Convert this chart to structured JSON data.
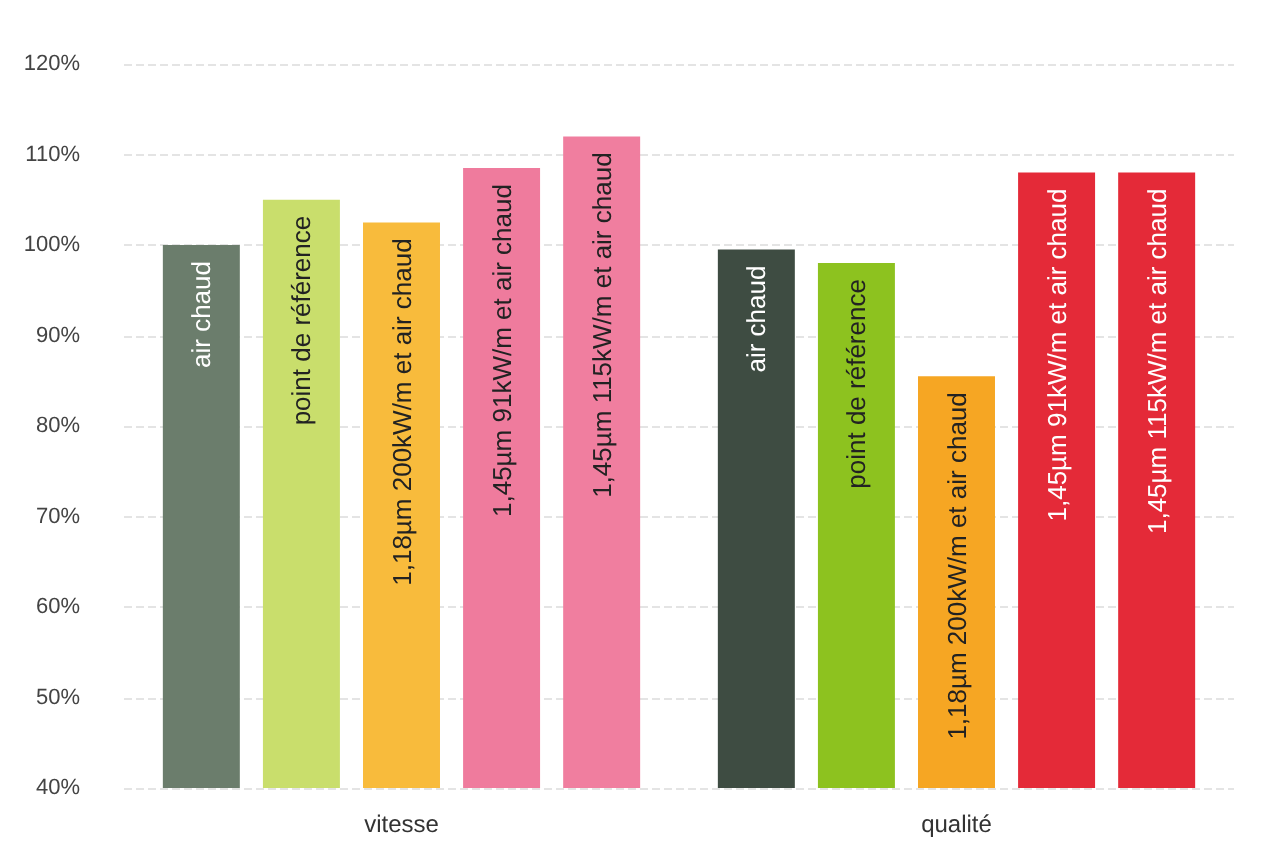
{
  "chart_data": {
    "type": "bar",
    "categories": [
      "vitesse",
      "qualité"
    ],
    "series": [
      {
        "name": "air chaud",
        "colors": [
          "#6b7d6c",
          "#3e4c42"
        ],
        "values": [
          100,
          99.5
        ]
      },
      {
        "name": "point de référence",
        "colors": [
          "#c9de6c",
          "#8dc21f"
        ],
        "values": [
          105,
          98
        ]
      },
      {
        "name": "1,18µm 200kW/m et air chaud",
        "colors": [
          "#f8bb3c",
          "#f6a623"
        ],
        "values": [
          102.5,
          85.5
        ]
      },
      {
        "name": "1,45µm 91kW/m et air chaud",
        "colors": [
          "#ef7b9d",
          "#e42a38"
        ],
        "values": [
          108.5,
          108
        ]
      },
      {
        "name": "1,45µm 115kW/m et air chaud",
        "colors": [
          "#f07e9f",
          "#e42a38"
        ],
        "values": [
          112,
          108
        ]
      }
    ],
    "ylim": [
      40,
      120
    ],
    "yticks": [
      {
        "value": 40,
        "label": "40%"
      },
      {
        "value": 50,
        "label": "50%"
      },
      {
        "value": 60,
        "label": "60%"
      },
      {
        "value": 70,
        "label": "70%"
      },
      {
        "value": 80,
        "label": "80%"
      },
      {
        "value": 90,
        "label": "90%"
      },
      {
        "value": 100,
        "label": "100%"
      },
      {
        "value": 110,
        "label": "110%"
      },
      {
        "value": 120,
        "label": "120%"
      }
    ],
    "grid": "y",
    "legend": false
  }
}
